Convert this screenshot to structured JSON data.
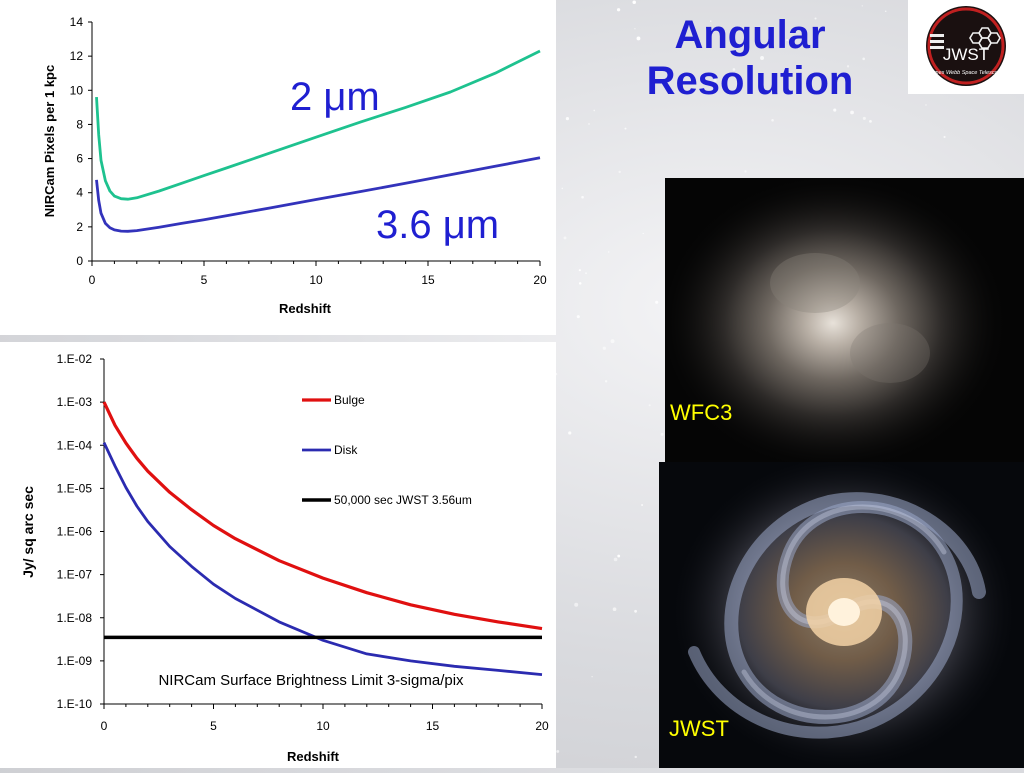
{
  "slide": {
    "title_line1": "Angular",
    "title_line2": "Resolution",
    "logo_text": "JWST",
    "logo_subtext": "James Webb Space Telescope"
  },
  "images": {
    "top_label": "WFC3",
    "bottom_label": "JWST"
  },
  "colors": {
    "title": "#1f1fd1",
    "series_2um": "#1ec28f",
    "series_36um": "#3333bb",
    "bulge": "#e01010",
    "disk": "#2b2bb0",
    "limit": "#000000",
    "image_label": "#ffff00"
  },
  "chart_data": [
    {
      "type": "line",
      "xlabel": "Redshift",
      "ylabel": "NIRCam Pixels per 1 kpc",
      "xlim": [
        0,
        20
      ],
      "ylim": [
        0,
        14
      ],
      "xticks": [
        0,
        5,
        10,
        15,
        20
      ],
      "yticks": [
        0,
        2,
        4,
        6,
        8,
        10,
        12,
        14
      ],
      "grid": false,
      "annotations": [
        {
          "text": "2 μm",
          "series": "2um"
        },
        {
          "text": "3.6 μm",
          "series": "3.6um"
        }
      ],
      "series": [
        {
          "key": "2um",
          "x": [
            0.2,
            0.3,
            0.4,
            0.6,
            0.8,
            1.0,
            1.3,
            1.6,
            2.0,
            3,
            4,
            5,
            6,
            8,
            10,
            12,
            14,
            16,
            18,
            20
          ],
          "y": [
            9.6,
            7.4,
            5.9,
            4.7,
            4.1,
            3.8,
            3.65,
            3.62,
            3.7,
            4.1,
            4.55,
            5.0,
            5.45,
            6.35,
            7.25,
            8.15,
            9.0,
            9.9,
            11.0,
            12.3
          ]
        },
        {
          "key": "3.6um",
          "x": [
            0.2,
            0.3,
            0.4,
            0.6,
            0.8,
            1.0,
            1.3,
            1.6,
            2.0,
            3,
            4,
            5,
            6,
            8,
            10,
            12,
            14,
            16,
            18,
            20
          ],
          "y": [
            4.75,
            3.55,
            2.8,
            2.2,
            1.95,
            1.82,
            1.75,
            1.74,
            1.78,
            1.98,
            2.2,
            2.42,
            2.65,
            3.12,
            3.6,
            4.07,
            4.55,
            5.05,
            5.55,
            6.05
          ]
        }
      ]
    },
    {
      "type": "line",
      "xlabel": "Redshift",
      "ylabel": "Jy/ sq arc sec",
      "xlim": [
        0,
        20
      ],
      "ylim_log10": [
        -10,
        -2
      ],
      "xticks": [
        0,
        5,
        10,
        15,
        20
      ],
      "ytick_labels": [
        "1.E-10",
        "1.E-09",
        "1.E-08",
        "1.E-07",
        "1.E-06",
        "1.E-05",
        "1.E-04",
        "1.E-03",
        "1.E-02"
      ],
      "legend_position": "top-right",
      "grid": false,
      "annotation": "NIRCam Surface Brightness Limit 3-sigma/pix",
      "series": [
        {
          "name": "Bulge",
          "x": [
            0,
            0.5,
            1,
            1.5,
            2,
            3,
            4,
            5,
            6,
            8,
            10,
            12,
            14,
            16,
            18,
            20
          ],
          "y": [
            0.001,
            0.00029,
            0.000112,
            5e-05,
            2.5e-05,
            8.1e-06,
            3.2e-06,
            1.38e-06,
            6.8e-07,
            2.1e-07,
            8.3e-08,
            3.8e-08,
            2e-08,
            1.2e-08,
            8e-09,
            5.6e-09
          ]
        },
        {
          "name": "Disk",
          "x": [
            0,
            0.5,
            1,
            1.5,
            2,
            3,
            4,
            5,
            6,
            8,
            10,
            12,
            14,
            16,
            18,
            20
          ],
          "y": [
            0.000115,
            3.3e-05,
            1.05e-05,
            3.9e-06,
            1.7e-06,
            4.5e-07,
            1.55e-07,
            6e-08,
            2.8e-08,
            8e-09,
            3e-09,
            1.45e-09,
            1e-09,
            7.5e-10,
            6e-10,
            4.8e-10
          ]
        },
        {
          "name": "50,000 sec JWST 3.56um",
          "x": [
            0,
            20
          ],
          "y": [
            3.5e-09,
            3.5e-09
          ]
        }
      ]
    }
  ]
}
